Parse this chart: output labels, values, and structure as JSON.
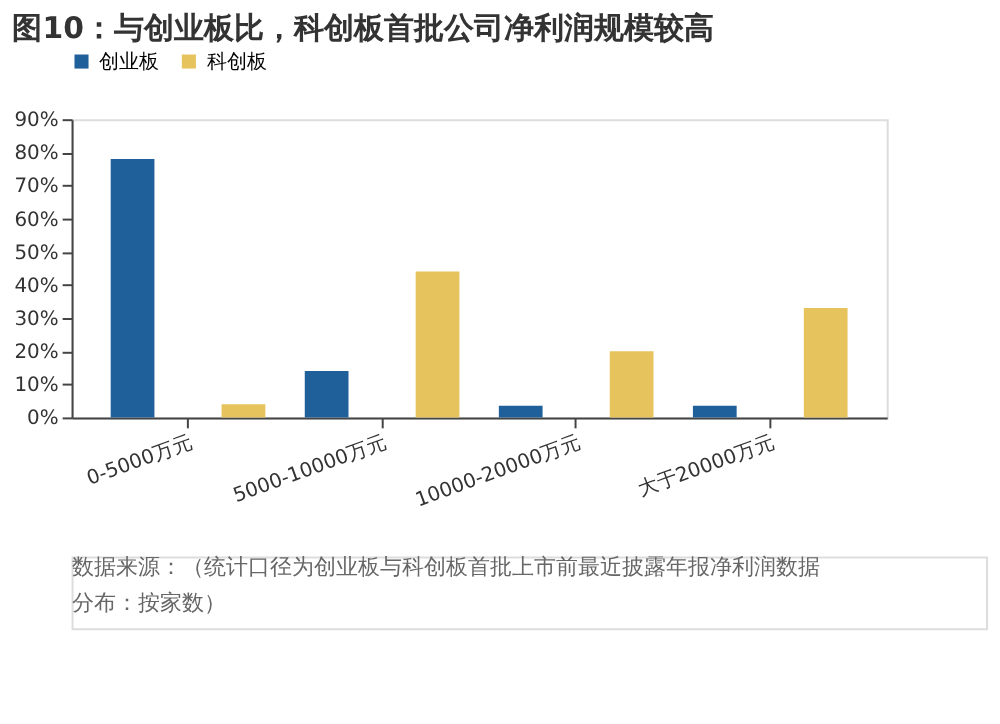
{
  "chart_data": {
    "type": "bar",
    "title": "图10：与创业板比，科创板首批公司净利润规模较高",
    "categories": [
      "0-5000万元",
      "5000-10000万元",
      "10000-20000万元",
      "大于20000万元"
    ],
    "series": [
      {
        "name": "创业板",
        "color": "#1f5f9a",
        "values": [
          78,
          14,
          3.5,
          3.5
        ]
      },
      {
        "name": "科创板",
        "color": "#e6c35c",
        "values": [
          4,
          44,
          20,
          33
        ]
      }
    ],
    "ylim": [
      0,
      90
    ],
    "yticks": [
      {
        "value": 0,
        "label": "0%"
      },
      {
        "value": 10,
        "label": "10%"
      },
      {
        "value": 20,
        "label": "20%"
      },
      {
        "value": 30,
        "label": "30%"
      },
      {
        "value": 40,
        "label": "40%"
      },
      {
        "value": 50,
        "label": "50%"
      },
      {
        "value": 60,
        "label": "60%"
      },
      {
        "value": 70,
        "label": "70%"
      },
      {
        "value": 80,
        "label": "80%"
      },
      {
        "value": 90,
        "label": "90%"
      }
    ],
    "grid": false,
    "legend": "top",
    "annotations": [
      "数据来源：（统计口径为创业板与科创板首批上市前最近披露年报净利润数据分布：按家数）"
    ]
  }
}
